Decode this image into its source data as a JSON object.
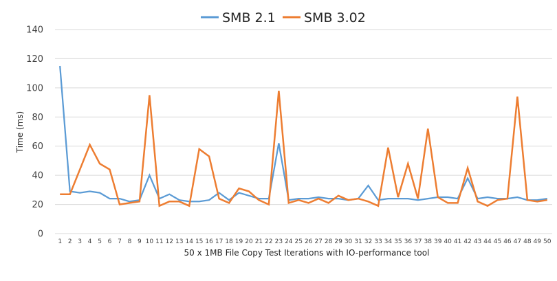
{
  "chart_data": {
    "type": "line",
    "title": "",
    "xlabel": "50 x 1MB File Copy Test Iterations with IO-performance tool",
    "ylabel": "Time (ms)",
    "ylim": [
      0,
      140
    ],
    "yticks": [
      0,
      20,
      40,
      60,
      80,
      100,
      120,
      140
    ],
    "grid": true,
    "legend_position": "top-center",
    "x": [
      1,
      2,
      3,
      4,
      5,
      6,
      7,
      8,
      9,
      10,
      11,
      12,
      13,
      14,
      15,
      16,
      17,
      18,
      19,
      20,
      21,
      22,
      23,
      24,
      25,
      26,
      27,
      28,
      29,
      30,
      31,
      32,
      33,
      34,
      35,
      36,
      37,
      38,
      39,
      40,
      41,
      42,
      43,
      44,
      45,
      46,
      47,
      48,
      49,
      50
    ],
    "series": [
      {
        "name": "SMB 2.1",
        "color": "#5b9bd5",
        "values": [
          115,
          29,
          28,
          29,
          28,
          24,
          24,
          22,
          23,
          40,
          24,
          27,
          23,
          22,
          22,
          23,
          28,
          23,
          28,
          26,
          24,
          24,
          62,
          23,
          24,
          24,
          25,
          24,
          24,
          23,
          24,
          33,
          23,
          24,
          24,
          24,
          23,
          24,
          25,
          25,
          24,
          38,
          24,
          25,
          24,
          24,
          25,
          23,
          23,
          24
        ]
      },
      {
        "name": "SMB 3.02",
        "color": "#ed7d31",
        "values": [
          27,
          27,
          44,
          61,
          48,
          44,
          20,
          21,
          22,
          95,
          19,
          22,
          22,
          19,
          58,
          53,
          24,
          21,
          31,
          29,
          23,
          20,
          98,
          21,
          23,
          21,
          24,
          21,
          26,
          23,
          24,
          22,
          19,
          59,
          25,
          48,
          24,
          72,
          25,
          21,
          21,
          45,
          22,
          19,
          23,
          24,
          94,
          23,
          22,
          23
        ]
      }
    ]
  }
}
